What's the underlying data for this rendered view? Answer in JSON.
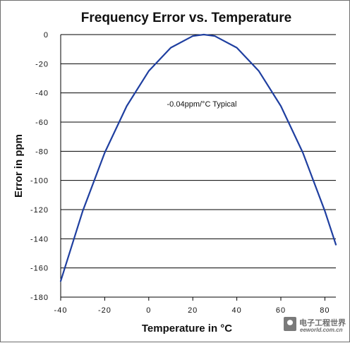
{
  "chart_data": {
    "type": "line",
    "title": "Frequency Error vs. Temperature",
    "xlabel": "Temperature in °C",
    "ylabel": "Error in ppm",
    "xlim": [
      -40,
      85
    ],
    "ylim": [
      -180,
      0
    ],
    "x_ticks": [
      "-40",
      "-20",
      "0",
      "20",
      "40",
      "60",
      "80"
    ],
    "y_ticks": [
      "0",
      "-20",
      "-40",
      "-60",
      "-80",
      "-100",
      "-120",
      "-140",
      "-160",
      "-180"
    ],
    "grid": "horizontal",
    "annotation": "-0.04ppm/°C Typical",
    "series": [
      {
        "x": [
          -40,
          -30,
          -20,
          -10,
          0,
          10,
          20,
          25,
          30,
          40,
          50,
          60,
          70,
          80,
          85
        ],
        "y": [
          -169,
          -121,
          -81,
          -49,
          -25,
          -9,
          -1,
          0,
          -1,
          -9,
          -25,
          -49,
          -81,
          -121,
          -144
        ],
        "color": "#1f3fa0"
      }
    ]
  },
  "watermark": {
    "main": "电子工程世界",
    "sub": "eeworld.com.cn"
  },
  "colors": {
    "border": "#6f6f6f",
    "grid": "#000000",
    "series": "#1f3fa0",
    "watermark": "#6d6d6d"
  }
}
